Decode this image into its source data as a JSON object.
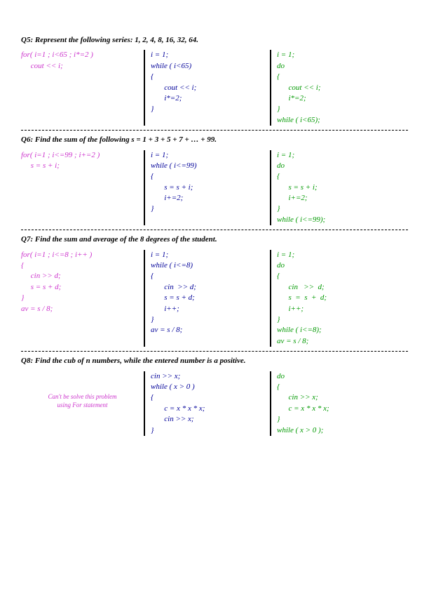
{
  "q5": {
    "title": "Q5: Represent the following series: 1, 2, 4, 8, 16, 32, 64.",
    "col1": "for( i=1 ; i<65 ; i*=2 )\n     cout << i;",
    "col2": "i = 1;\nwhile ( i<65)\n{\n       cout << i;\n       i*=2;\n}",
    "col3": "i = 1;\ndo\n{\n      cout << i;\n      i*=2;\n}\nwhile ( i<65);"
  },
  "q6": {
    "title": "Q6: Find the sum of the following s = 1 + 3 + 5 + 7 + … + 99.",
    "col1": "for( i=1 ; i<=99 ; i+=2 )\n     s = s + i;",
    "col2": "i = 1;\nwhile ( i<=99)\n{\n       s = s + i;\n       i+=2;\n}",
    "col3": "i = 1;\ndo\n{\n      s = s + i;\n      i+=2;\n}\nwhile ( i<=99);"
  },
  "q7": {
    "title": "Q7: Find the sum and average of the 8 degrees of the student.",
    "col1": "for( i=1 ; i<=8 ; i++ )\n{\n     cin >> d;\n     s = s + d;\n}\nav = s / 8;",
    "col2": "i = 1;\nwhile ( i<=8)\n{\n       cin  >> d;\n       s = s + d;\n       i++;\n}\nav = s / 8;",
    "col3": "i = 1;\ndo\n{\n      cin   >>  d;\n      s  =  s  +  d;\n      i++;\n}\nwhile ( i<=8);\nav = s / 8;"
  },
  "q8": {
    "title": "Q8: Find the cub of n numbers, while the entered number is a positive.",
    "note": "Can't be solve this problem\nusing For statement",
    "col2": "cin >> x;\nwhile ( x > 0 )\n{\n       c = x * x * x;\n       cin >> x;\n}",
    "col3": "do\n{\n      cin >> x;\n      c = x * x * x;\n}\nwhile ( x > 0 );"
  }
}
